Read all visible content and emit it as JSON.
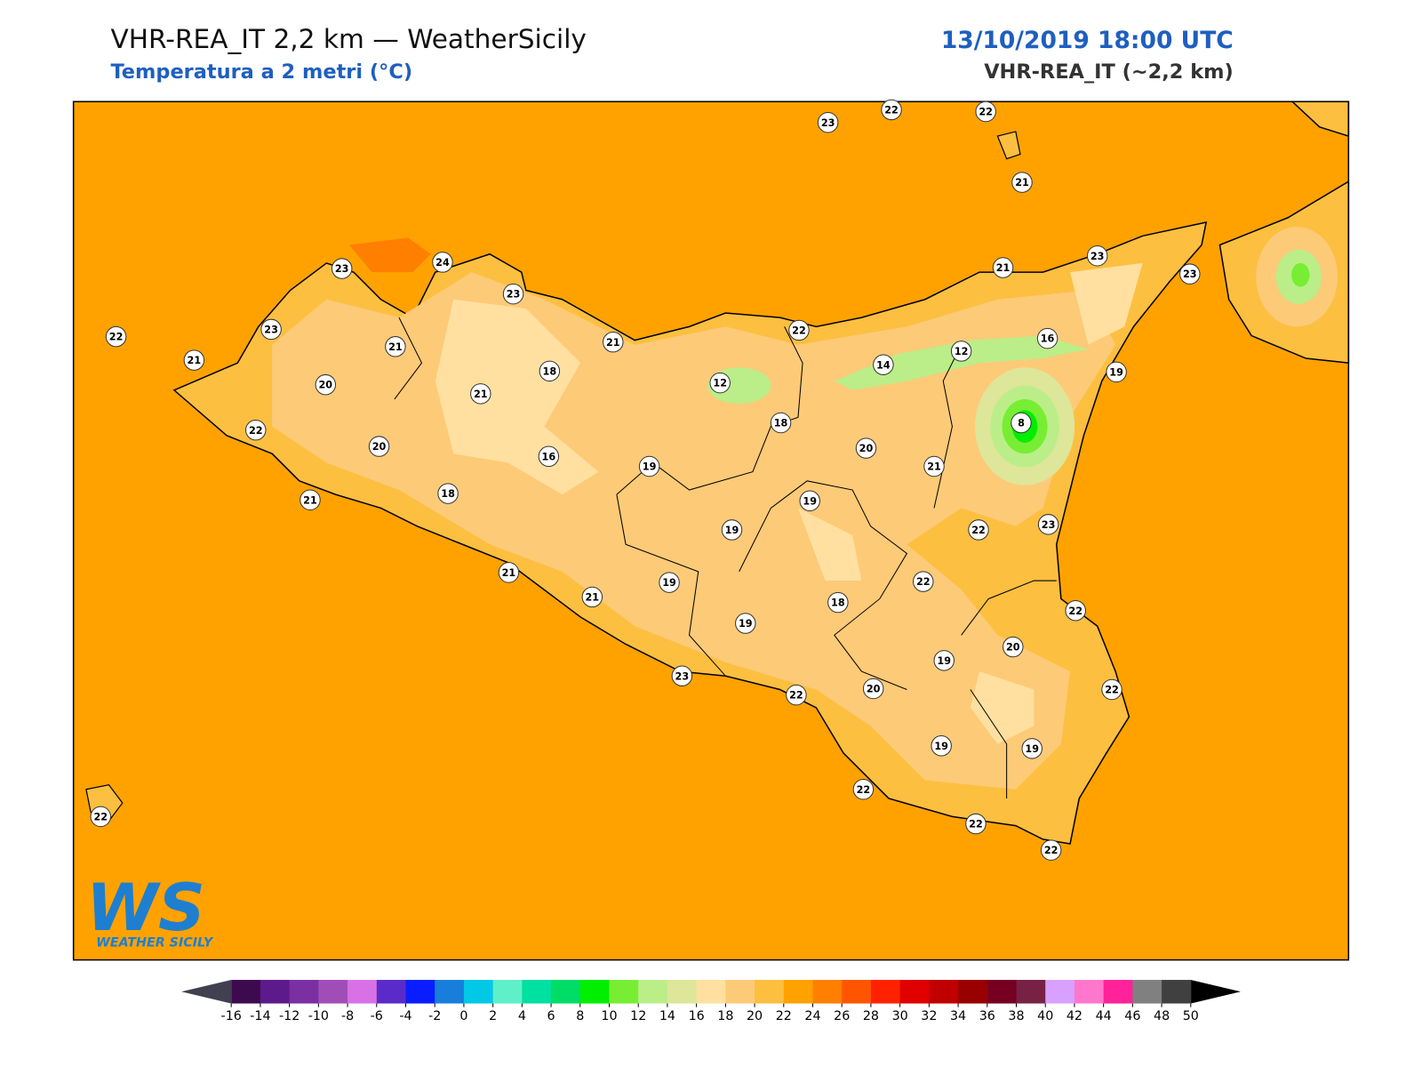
{
  "header": {
    "title": "VHR-REA_IT 2,2 km — WeatherSicily",
    "subtitle": "Temperatura a 2 metri (°C)",
    "datetime": "13/10/2019 18:00 UTC",
    "model": "VHR-REA_IT (~2,2 km)"
  },
  "map": {
    "sea_color": "#ffa200",
    "stations": [
      23,
      22,
      22,
      21,
      23,
      24,
      23,
      22,
      23,
      21,
      21,
      20,
      22,
      20,
      21,
      18,
      18,
      21,
      21,
      16,
      19,
      12,
      22,
      18,
      14,
      12,
      16,
      21,
      23,
      23,
      19,
      8,
      20,
      21,
      19,
      19,
      22,
      23,
      21,
      21,
      19,
      19,
      18,
      22,
      22,
      20,
      19,
      20,
      22,
      23,
      22,
      19,
      19,
      22,
      22,
      22,
      22
    ]
  },
  "logo": {
    "mark": "WS",
    "name": "WEATHER SICILY"
  },
  "colorbar": {
    "ticks": [
      -16,
      -14,
      -12,
      -10,
      -8,
      -6,
      -4,
      -2,
      0,
      2,
      4,
      6,
      8,
      10,
      12,
      14,
      16,
      18,
      20,
      22,
      24,
      26,
      28,
      30,
      32,
      34,
      36,
      38,
      40,
      42,
      44,
      46,
      48,
      50
    ],
    "colors": [
      "#3d0a4f",
      "#5c1a8a",
      "#7b2fa3",
      "#a14db8",
      "#d971e6",
      "#5a2bc9",
      "#0a1dff",
      "#177fdb",
      "#00c8e6",
      "#5ef0c8",
      "#00e0a0",
      "#00dd66",
      "#00ee00",
      "#77ee33",
      "#bbee88",
      "#dde699",
      "#ffe0a0",
      "#fdca78",
      "#fdbf40",
      "#ffa200",
      "#ff7f00",
      "#ff5500",
      "#ff2200",
      "#e00000",
      "#c00000",
      "#990000",
      "#770022",
      "#772244",
      "#d8a0ff",
      "#ff77cc",
      "#ff2299",
      "#808080",
      "#404040"
    ],
    "under": "#404050",
    "over": "#000000"
  }
}
